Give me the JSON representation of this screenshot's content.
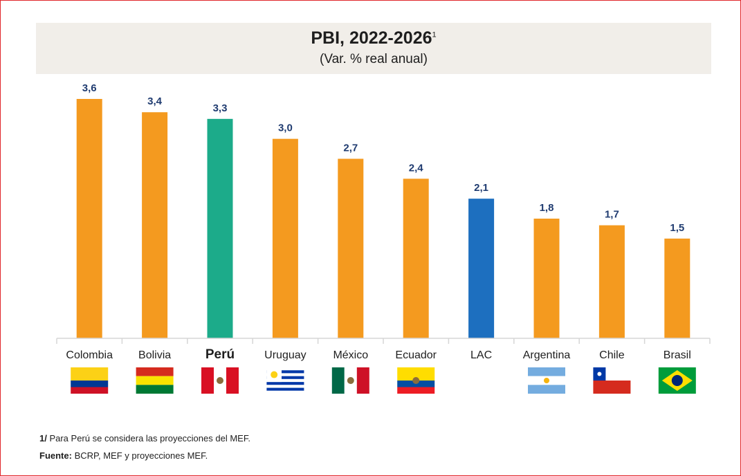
{
  "chart_data": {
    "type": "bar",
    "title": "PBI, 2022-2026",
    "title_superscript": "1",
    "subtitle": "(Var. % real anual)",
    "categories": [
      "Colombia",
      "Bolivia",
      "Perú",
      "Uruguay",
      "México",
      "Ecuador",
      "LAC",
      "Argentina",
      "Chile",
      "Brasil"
    ],
    "values": [
      3.6,
      3.4,
      3.3,
      3.0,
      2.7,
      2.4,
      2.1,
      1.8,
      1.7,
      1.5
    ],
    "value_labels": [
      "3,6",
      "3,4",
      "3,3",
      "3,0",
      "2,7",
      "2,4",
      "2,1",
      "1,8",
      "1,7",
      "1,5"
    ],
    "bar_colors": [
      "#f49a1f",
      "#f49a1f",
      "#1cab8a",
      "#f49a1f",
      "#f49a1f",
      "#f49a1f",
      "#1d6fbf",
      "#f49a1f",
      "#f49a1f",
      "#f49a1f"
    ],
    "highlight_category": "Perú",
    "flags": [
      "colombia-flag",
      "bolivia-flag",
      "peru-flag",
      "uruguay-flag",
      "mexico-flag",
      "ecuador-flag",
      "",
      "argentina-flag",
      "chile-flag",
      "brazil-flag"
    ],
    "ylim": [
      0,
      3.6
    ],
    "grid": false,
    "legend": "none"
  },
  "footnotes": {
    "note1_marker": "1/",
    "note1_text": " Para Perú se considera las proyecciones del MEF.",
    "source_label": "Fuente:",
    "source_text": " BCRP, MEF y proyecciones MEF."
  },
  "colors": {
    "orange": "#f49a1f",
    "peru_green": "#1cab8a",
    "lac_blue": "#1d6fbf",
    "value_label": "#1f3b70",
    "border_red": "#e0262b",
    "title_band": "#f1eee9"
  }
}
